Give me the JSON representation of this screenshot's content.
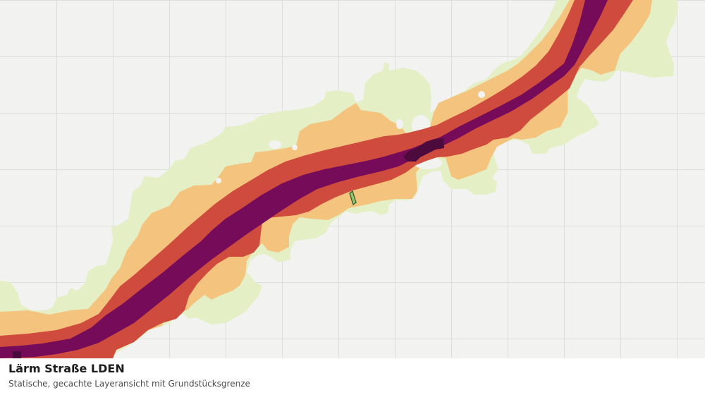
{
  "map": {
    "colors": {
      "background": "#f2f3f1",
      "grid": "#dcdfdb",
      "zone_outer": "#e5efc6",
      "zone_moderate": "#f4c47f",
      "zone_high": "#cf4b3d",
      "zone_very_high": "#760b5a",
      "zone_peak": "#4d0a3c",
      "parcel_fill": "#9cc46d",
      "parcel_stroke": "#2c5e2c"
    }
  },
  "caption": {
    "title": "Lärm Straße LDEN",
    "subtitle": "Statische, gecachte Layeransicht mit Grundstücksgrenze"
  }
}
